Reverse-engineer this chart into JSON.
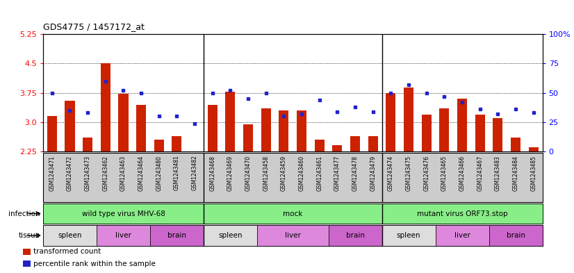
{
  "title": "GDS4775 / 1457172_at",
  "samples": [
    "GSM1243471",
    "GSM1243472",
    "GSM1243473",
    "GSM1243462",
    "GSM1243463",
    "GSM1243464",
    "GSM1243480",
    "GSM1243481",
    "GSM1243482",
    "GSM1243468",
    "GSM1243469",
    "GSM1243470",
    "GSM1243458",
    "GSM1243459",
    "GSM1243460",
    "GSM1243461",
    "GSM1243477",
    "GSM1243478",
    "GSM1243479",
    "GSM1243474",
    "GSM1243475",
    "GSM1243476",
    "GSM1243465",
    "GSM1243466",
    "GSM1243467",
    "GSM1243483",
    "GSM1243484",
    "GSM1243485"
  ],
  "bar_values": [
    3.15,
    3.55,
    2.6,
    4.5,
    3.72,
    3.45,
    2.55,
    2.65,
    2.22,
    3.45,
    3.78,
    2.95,
    3.35,
    3.3,
    3.3,
    2.55,
    2.42,
    2.65,
    2.65,
    3.75,
    3.88,
    3.2,
    3.35,
    3.6,
    3.2,
    3.1,
    2.6,
    2.35
  ],
  "dot_percentiles": [
    50,
    35,
    33,
    60,
    52,
    50,
    30,
    30,
    24,
    50,
    52,
    45,
    50,
    30,
    32,
    44,
    34,
    38,
    34,
    50,
    57,
    50,
    47,
    42,
    36,
    32,
    36,
    33
  ],
  "ylim_left": [
    2.25,
    5.25
  ],
  "yticks_left": [
    2.25,
    3.0,
    3.75,
    4.5,
    5.25
  ],
  "ylim_right": [
    0,
    100
  ],
  "yticks_right": [
    0,
    25,
    50,
    75,
    100
  ],
  "bar_color": "#cc2200",
  "dot_color": "#2222cc",
  "infection_groups": [
    {
      "label": "wild type virus MHV-68",
      "start": 0,
      "end": 9
    },
    {
      "label": "mock",
      "start": 9,
      "end": 19
    },
    {
      "label": "mutant virus ORF73.stop",
      "start": 19,
      "end": 28
    }
  ],
  "infection_color": "#88ee88",
  "tissue_groups": [
    {
      "label": "spleen",
      "start": 0,
      "end": 3,
      "color": "#dddddd"
    },
    {
      "label": "liver",
      "start": 3,
      "end": 6,
      "color": "#dd88dd"
    },
    {
      "label": "brain",
      "start": 6,
      "end": 9,
      "color": "#cc66cc"
    },
    {
      "label": "spleen",
      "start": 9,
      "end": 12,
      "color": "#dddddd"
    },
    {
      "label": "liver",
      "start": 12,
      "end": 16,
      "color": "#dd88dd"
    },
    {
      "label": "brain",
      "start": 16,
      "end": 19,
      "color": "#cc66cc"
    },
    {
      "label": "spleen",
      "start": 19,
      "end": 22,
      "color": "#dddddd"
    },
    {
      "label": "liver",
      "start": 22,
      "end": 25,
      "color": "#dd88dd"
    },
    {
      "label": "brain",
      "start": 25,
      "end": 28,
      "color": "#cc66cc"
    }
  ],
  "infection_label": "infection",
  "tissue_label": "tissue",
  "group_dividers": [
    9,
    19
  ],
  "xtick_bg_color": "#cccccc",
  "legend_items": [
    {
      "color": "#cc2200",
      "label": "transformed count"
    },
    {
      "color": "#2222cc",
      "label": "percentile rank within the sample"
    }
  ]
}
